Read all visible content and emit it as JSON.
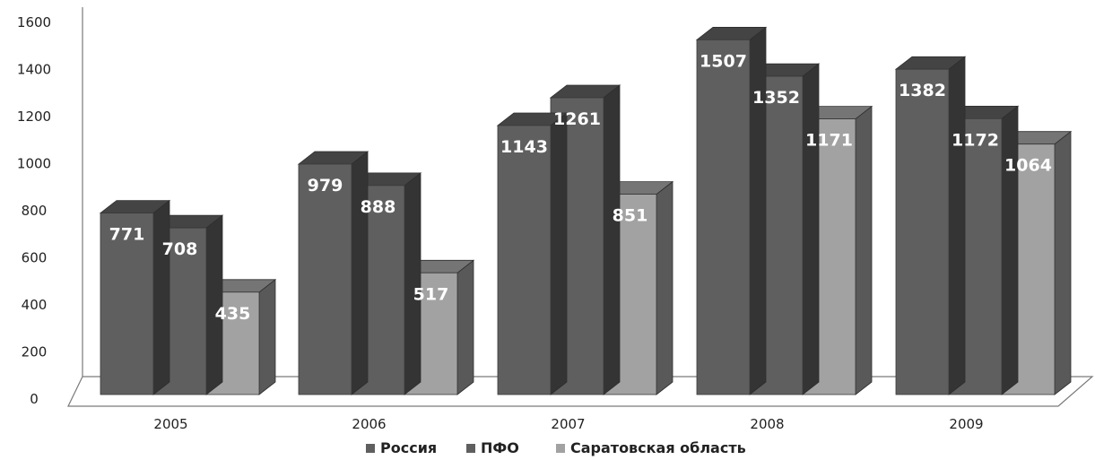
{
  "chart_data": {
    "type": "bar",
    "categories": [
      "2005",
      "2006",
      "2007",
      "2008",
      "2009"
    ],
    "series": [
      {
        "name": "Россия",
        "values": [
          771,
          979,
          1143,
          1507,
          1382
        ],
        "color": "#5f5f5f"
      },
      {
        "name": "ПФО",
        "values": [
          708,
          888,
          1261,
          1352,
          1172
        ],
        "color": "#5f5f5f"
      },
      {
        "name": "Саратовская область",
        "values": [
          435,
          517,
          851,
          1171,
          1064
        ],
        "color": "#a2a2a2"
      }
    ],
    "y_ticks": [
      "0",
      "200",
      "400",
      "600",
      "800",
      "1000",
      "1200",
      "1400",
      "1600"
    ],
    "ylim": [
      0,
      1600
    ],
    "grid": false,
    "legend": "bottom",
    "three_d": true
  }
}
